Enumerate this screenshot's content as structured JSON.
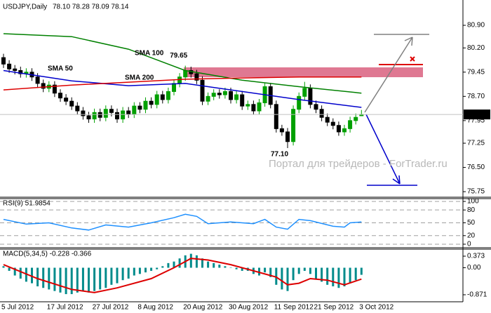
{
  "chart_data": [
    {
      "type": "candlestick",
      "title": "USDJPY,Daily",
      "subtitle": "78.10 78.28 78.09 78.14",
      "categories": [
        "5 Jul 2012",
        null,
        null,
        null,
        null,
        null,
        null,
        null,
        "17 Jul 2012",
        null,
        null,
        null,
        null,
        null,
        null,
        null,
        "27 Jul 2012",
        null,
        null,
        null,
        null,
        null,
        null,
        null,
        "8 Aug 2012",
        null,
        null,
        null,
        null,
        null,
        null,
        null,
        "20 Aug 2012",
        null,
        null,
        null,
        null,
        null,
        null,
        null,
        "30 Aug 2012",
        null,
        null,
        null,
        null,
        null,
        null,
        null,
        "11 Sep 2012",
        null,
        null,
        null,
        null,
        null,
        null,
        "21 Sep 2012",
        null,
        null,
        null,
        null,
        null,
        null,
        null,
        "3 Oct 2012"
      ],
      "open": [
        79.9,
        79.7,
        79.55,
        79.5,
        79.4,
        79.45,
        79.3,
        79.1,
        78.95,
        79.05,
        78.8,
        78.65,
        78.55,
        78.4,
        78.25,
        78.1,
        78.0,
        78.2,
        78.05,
        78.3,
        78.2,
        78.0,
        78.25,
        78.15,
        78.4,
        78.3,
        78.55,
        78.45,
        78.75,
        78.6,
        78.85,
        79.1,
        79.3,
        79.5,
        79.4,
        79.2,
        78.55,
        78.7,
        78.8,
        78.75,
        78.85,
        78.6,
        78.75,
        78.4,
        78.45,
        78.25,
        78.5,
        79.0,
        78.45,
        77.7,
        77.6,
        77.3,
        78.3,
        78.7,
        78.95,
        78.45,
        78.3,
        78.05,
        77.9,
        77.8,
        77.6,
        77.7,
        77.95,
        78.1
      ],
      "high": [
        80.02,
        79.82,
        79.67,
        79.62,
        79.57,
        79.57,
        79.42,
        79.22,
        79.17,
        79.17,
        78.92,
        78.77,
        78.67,
        78.52,
        78.37,
        78.22,
        78.32,
        78.32,
        78.42,
        78.42,
        78.32,
        78.37,
        78.37,
        78.52,
        78.52,
        78.67,
        78.67,
        78.87,
        78.87,
        78.97,
        79.22,
        79.42,
        79.65,
        79.62,
        79.52,
        79.32,
        78.82,
        78.92,
        78.92,
        78.97,
        78.97,
        78.87,
        78.87,
        78.57,
        78.57,
        78.62,
        79.12,
        79.12,
        78.57,
        77.82,
        77.72,
        78.42,
        78.82,
        79.15,
        79.07,
        78.57,
        78.42,
        78.17,
        78.02,
        77.92,
        77.82,
        78.07,
        78.17,
        78.28
      ],
      "low": [
        79.58,
        79.43,
        79.38,
        79.28,
        79.28,
        79.18,
        78.98,
        78.83,
        78.83,
        78.68,
        78.53,
        78.43,
        78.28,
        78.13,
        77.98,
        77.88,
        77.88,
        77.93,
        77.93,
        78.08,
        77.88,
        77.88,
        78.03,
        78.03,
        78.18,
        78.18,
        78.33,
        78.33,
        78.48,
        78.48,
        78.73,
        78.98,
        79.18,
        79.28,
        79.08,
        78.43,
        78.43,
        78.58,
        78.63,
        78.63,
        78.48,
        78.48,
        78.28,
        78.28,
        78.13,
        78.13,
        78.38,
        78.33,
        77.58,
        77.48,
        77.1,
        77.18,
        78.18,
        78.58,
        78.33,
        78.18,
        77.93,
        77.78,
        77.68,
        77.48,
        77.48,
        77.58,
        77.83,
        78.09
      ],
      "close": [
        79.7,
        79.55,
        79.5,
        79.4,
        79.45,
        79.3,
        79.1,
        78.95,
        79.05,
        78.8,
        78.65,
        78.55,
        78.4,
        78.25,
        78.1,
        78.0,
        78.2,
        78.05,
        78.3,
        78.2,
        78.0,
        78.25,
        78.15,
        78.4,
        78.3,
        78.55,
        78.45,
        78.75,
        78.6,
        78.85,
        79.1,
        79.3,
        79.5,
        79.4,
        79.2,
        78.55,
        78.7,
        78.8,
        78.75,
        78.85,
        78.6,
        78.75,
        78.4,
        78.45,
        78.25,
        78.5,
        79.0,
        78.45,
        77.7,
        77.6,
        77.3,
        78.3,
        78.7,
        78.95,
        78.45,
        78.3,
        78.05,
        77.9,
        77.8,
        77.6,
        77.7,
        77.95,
        78.05,
        78.14
      ],
      "up_color": "#00a000",
      "down_color": "#000000",
      "overlays": [
        {
          "name": "SMA 100",
          "color": "#008000",
          "x": [
            0,
            12,
            22,
            32,
            42,
            52,
            63
          ],
          "values": [
            80.64,
            80.55,
            80.16,
            79.5,
            79.2,
            79.0,
            78.8
          ]
        },
        {
          "name": "SMA 50",
          "color": "#0000cc",
          "x": [
            0,
            12,
            22,
            32,
            42,
            52,
            63
          ],
          "values": [
            79.5,
            79.18,
            79.03,
            79.1,
            78.85,
            78.6,
            78.36
          ]
        },
        {
          "name": "SMA 200",
          "color": "#dd0000",
          "x": [
            0,
            12,
            22,
            32,
            42,
            52,
            63
          ],
          "values": [
            78.9,
            79.05,
            79.14,
            79.23,
            79.27,
            79.3,
            79.3
          ]
        }
      ],
      "annotations": [
        "79.65",
        "77.10"
      ],
      "watermark": "Портал для трейдеров - ForTrader.ru",
      "ylim": [
        75.6,
        81.64
      ],
      "yticks": [
        {
          "value": 80.9,
          "label": "80.90"
        },
        {
          "value": 80.2,
          "label": "80.20"
        },
        79.45,
        {
          "value": 78.7,
          "label": "78.70"
        },
        77.95,
        77.25,
        {
          "value": 76.5,
          "label": "76.50"
        },
        75.75
      ]
    },
    {
      "type": "line",
      "title": "RSI(9) 51.9854",
      "color": "#1e90ff",
      "x": [
        0,
        4,
        8,
        12,
        15,
        18,
        22,
        26,
        30,
        32,
        34,
        36,
        40,
        44,
        46,
        48,
        50,
        52,
        54,
        58,
        60,
        61,
        63
      ],
      "values": [
        58,
        47,
        50,
        38,
        33,
        45,
        40,
        50,
        62,
        70,
        65,
        48,
        52,
        48,
        58,
        40,
        35,
        58,
        55,
        42,
        40,
        50,
        52
      ],
      "ylim": [
        -6.6,
        104.9
      ],
      "yticks": [
        100,
        80,
        50,
        20,
        0
      ],
      "grid": "dashed"
    },
    {
      "type": "bar",
      "title": "MACD(5,34,5) -0.228 -0.366",
      "color": "#008b8b",
      "values": [
        0.05,
        -0.1,
        -0.25,
        -0.35,
        -0.45,
        -0.5,
        -0.6,
        -0.65,
        -0.7,
        -0.75,
        -0.8,
        -0.85,
        -0.85,
        -0.8,
        -0.75,
        -0.8,
        -0.75,
        -0.7,
        -0.65,
        -0.55,
        -0.5,
        -0.4,
        -0.35,
        -0.25,
        -0.2,
        -0.15,
        -0.1,
        -0.05,
        0.05,
        0.15,
        0.2,
        0.3,
        0.4,
        0.45,
        0.4,
        0.3,
        0.2,
        0.15,
        0.1,
        0.05,
        0.0,
        -0.05,
        -0.1,
        -0.1,
        -0.2,
        -0.25,
        -0.15,
        -0.3,
        -0.55,
        -0.7,
        -0.75,
        -0.4,
        -0.2,
        -0.1,
        -0.2,
        -0.35,
        -0.45,
        -0.55,
        -0.6,
        -0.65,
        -0.6,
        -0.5,
        -0.4,
        -0.228
      ],
      "signal": {
        "color": "#dd0000",
        "x": [
          0,
          6,
          12,
          16,
          20,
          26,
          30,
          33,
          36,
          40,
          44,
          48,
          50,
          52,
          54,
          57,
          60,
          63
        ],
        "values": [
          0.1,
          -0.35,
          -0.7,
          -0.8,
          -0.65,
          -0.35,
          0.0,
          0.3,
          0.25,
          0.1,
          -0.1,
          -0.3,
          -0.55,
          -0.5,
          -0.35,
          -0.4,
          -0.55,
          -0.366
        ]
      },
      "ylim": [
        -1.052,
        0.577
      ],
      "yticks": [
        0.373,
        {
          "value": 0,
          "label": "0.00"
        },
        -0.871
      ]
    }
  ]
}
